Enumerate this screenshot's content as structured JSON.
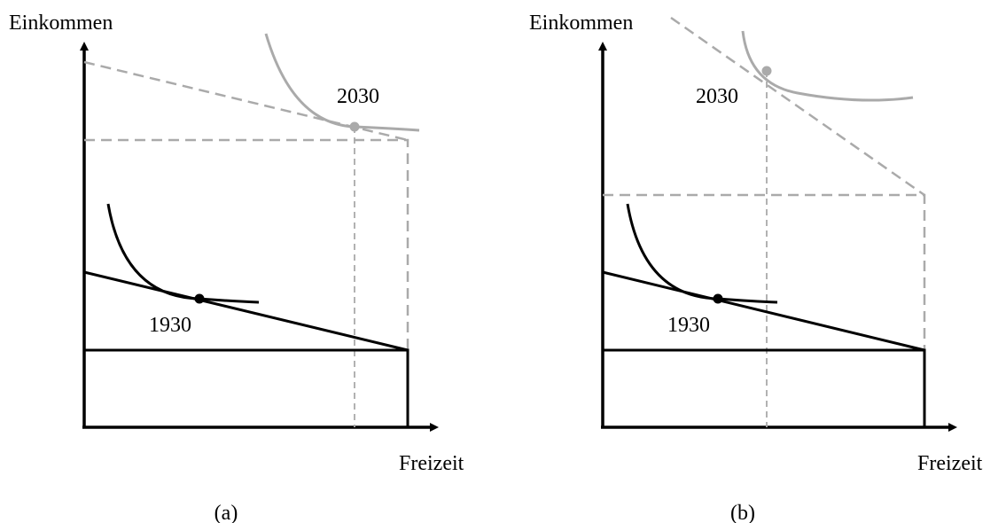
{
  "panels": [
    {
      "y_axis": "Einkommen",
      "x_axis": "Freizeit",
      "labels": [
        "1930",
        "2030"
      ],
      "caption": "(a)"
    },
    {
      "y_axis": "Einkommen",
      "x_axis": "Freizeit",
      "labels": [
        "1930",
        "2030"
      ],
      "caption": "(b)"
    }
  ]
}
